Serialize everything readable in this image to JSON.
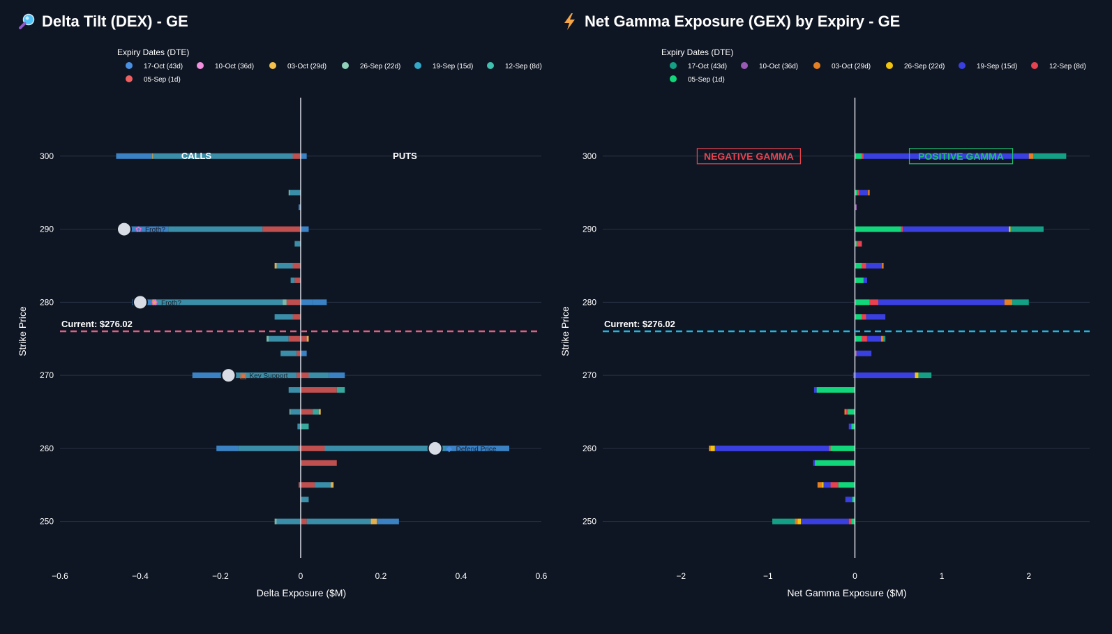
{
  "charts": [
    {
      "title": "Delta Tilt (DEX) - GE",
      "icon": "magnifier-icon",
      "type": "bar",
      "orientation": "horizontal",
      "stacked": true,
      "xlabel": "Delta Exposure ($M)",
      "ylabel": "Strike Price",
      "xlim": [
        -0.6,
        0.6
      ],
      "x_ticks": [
        "−0.6",
        "−0.4",
        "−0.2",
        "0",
        "0.2",
        "0.4",
        "0.6"
      ],
      "x_tick_values": [
        -0.6,
        -0.4,
        -0.2,
        0,
        0.2,
        0.4,
        0.6
      ],
      "ylim": [
        245,
        308
      ],
      "y_ticks": [
        "250",
        "260",
        "270",
        "280",
        "290",
        "300"
      ],
      "y_tick_values": [
        250,
        260,
        270,
        280,
        290,
        300
      ],
      "legend_title": "Expiry Dates (DTE)",
      "legend_position": "top",
      "series": [
        {
          "name": "17-Oct (43d)",
          "color": "#3b82c4",
          "marker_color": "#4a90e2"
        },
        {
          "name": "10-Oct (36d)",
          "color": "#d98ad6",
          "marker_color": "#f48fe0"
        },
        {
          "name": "03-Oct (29d)",
          "color": "#e0b050",
          "marker_color": "#f5c04a"
        },
        {
          "name": "26-Sep (22d)",
          "color": "#7fb8a8",
          "marker_color": "#8fd1b8"
        },
        {
          "name": "19-Sep (15d)",
          "color": "#3a8ea8",
          "marker_color": "#33a8c7"
        },
        {
          "name": "12-Sep (8d)",
          "color": "#38a89d",
          "marker_color": "#3fc1b0"
        },
        {
          "name": "05-Sep (1d)",
          "color": "#c05050",
          "marker_color": "#f06060"
        }
      ],
      "bars": [
        {
          "strike": 300,
          "segments": [
            [
              -0.46,
              -0.37,
              0
            ],
            [
              -0.37,
              -0.368,
              2
            ],
            [
              -0.368,
              -0.02,
              4
            ],
            [
              -0.02,
              0.0,
              6
            ],
            [
              0.0,
              0.015,
              0
            ]
          ]
        },
        {
          "strike": 295,
          "segments": [
            [
              -0.03,
              -0.027,
              3
            ],
            [
              -0.027,
              0.0,
              4
            ]
          ]
        },
        {
          "strike": 293,
          "segments": [
            [
              -0.005,
              0.0,
              0
            ]
          ]
        },
        {
          "strike": 290,
          "segments": [
            [
              -0.44,
              -0.33,
              0
            ],
            [
              -0.33,
              -0.095,
              4
            ],
            [
              -0.095,
              0.0,
              6
            ],
            [
              0.0,
              0.02,
              0
            ]
          ]
        },
        {
          "strike": 288,
          "segments": [
            [
              -0.015,
              0.0,
              4
            ]
          ]
        },
        {
          "strike": 285,
          "segments": [
            [
              -0.065,
              -0.06,
              2
            ],
            [
              -0.06,
              -0.02,
              4
            ],
            [
              -0.02,
              0.0,
              6
            ]
          ]
        },
        {
          "strike": 283,
          "segments": [
            [
              -0.025,
              -0.015,
              4
            ],
            [
              -0.015,
              0.0,
              6
            ]
          ]
        },
        {
          "strike": 280,
          "segments": [
            [
              -0.42,
              -0.37,
              0
            ],
            [
              -0.37,
              -0.36,
              2
            ],
            [
              -0.36,
              -0.045,
              4
            ],
            [
              -0.045,
              -0.035,
              3
            ],
            [
              -0.035,
              0.0,
              6
            ],
            [
              0.0,
              0.03,
              0
            ],
            [
              0.03,
              0.065,
              0
            ]
          ]
        },
        {
          "strike": 278,
          "segments": [
            [
              -0.065,
              -0.02,
              4
            ],
            [
              -0.02,
              0.0,
              6
            ]
          ]
        },
        {
          "strike": 275,
          "segments": [
            [
              -0.085,
              -0.08,
              3
            ],
            [
              -0.08,
              -0.03,
              4
            ],
            [
              -0.03,
              0.0,
              6
            ],
            [
              0.0,
              0.015,
              6
            ],
            [
              0.015,
              0.02,
              2
            ]
          ]
        },
        {
          "strike": 273,
          "segments": [
            [
              -0.05,
              -0.01,
              4
            ],
            [
              -0.01,
              0.0,
              6
            ],
            [
              0.0,
              0.015,
              0
            ]
          ]
        },
        {
          "strike": 270,
          "segments": [
            [
              -0.27,
              -0.2,
              0
            ],
            [
              -0.2,
              -0.01,
              4
            ],
            [
              -0.01,
              0.0,
              6
            ],
            [
              0.0,
              0.02,
              6
            ],
            [
              0.02,
              0.07,
              4
            ],
            [
              0.07,
              0.11,
              0
            ]
          ]
        },
        {
          "strike": 268,
          "segments": [
            [
              -0.03,
              0.0,
              4
            ],
            [
              0.0,
              0.09,
              6
            ],
            [
              0.09,
              0.11,
              5
            ]
          ]
        },
        {
          "strike": 265,
          "segments": [
            [
              -0.028,
              -0.025,
              3
            ],
            [
              -0.025,
              0.0,
              4
            ],
            [
              0.0,
              0.03,
              6
            ],
            [
              0.03,
              0.045,
              5
            ],
            [
              0.045,
              0.05,
              2
            ]
          ]
        },
        {
          "strike": 263,
          "segments": [
            [
              -0.008,
              0.0,
              4
            ],
            [
              0.0,
              0.02,
              5
            ]
          ]
        },
        {
          "strike": 260,
          "segments": [
            [
              -0.21,
              -0.155,
              0
            ],
            [
              -0.155,
              -0.005,
              4
            ],
            [
              -0.005,
              0.0,
              6
            ],
            [
              0.0,
              0.06,
              6
            ],
            [
              0.06,
              0.36,
              4
            ],
            [
              0.36,
              0.52,
              0
            ]
          ]
        },
        {
          "strike": 258,
          "segments": [
            [
              0.0,
              0.09,
              6
            ]
          ]
        },
        {
          "strike": 255,
          "segments": [
            [
              -0.005,
              0.0,
              6
            ],
            [
              0.0,
              0.035,
              6
            ],
            [
              0.035,
              0.075,
              4
            ],
            [
              0.075,
              0.082,
              2
            ]
          ]
        },
        {
          "strike": 253,
          "segments": [
            [
              0.0,
              0.02,
              4
            ]
          ]
        },
        {
          "strike": 250,
          "segments": [
            [
              -0.065,
              -0.06,
              3
            ],
            [
              -0.06,
              0.0,
              4
            ],
            [
              0.0,
              0.015,
              6
            ],
            [
              0.015,
              0.175,
              4
            ],
            [
              0.175,
              0.19,
              2
            ],
            [
              0.19,
              0.245,
              0
            ]
          ]
        }
      ],
      "current_price": 276.02,
      "current_label": "Current: $276.02",
      "current_line_color": "#e06080",
      "zone_labels": [
        {
          "text": "CALLS",
          "x": -0.26,
          "y": 300
        },
        {
          "text": "PUTS",
          "x": 0.26,
          "y": 300
        }
      ],
      "markers": [
        {
          "x": -0.44,
          "y": 290,
          "emoji": "✿",
          "emoji_color": "#f06fd0",
          "label": "Froth?"
        },
        {
          "x": -0.4,
          "y": 280,
          "emoji": "✿",
          "emoji_color": "#f06fd0",
          "label": "Froth?"
        },
        {
          "x": -0.18,
          "y": 270,
          "emoji": "▣",
          "emoji_color": "#e07040",
          "label": "Key Support"
        },
        {
          "x": 0.335,
          "y": 260,
          "emoji": "◆",
          "emoji_color": "#4a90e2",
          "label": "Defend Price"
        }
      ]
    },
    {
      "title": "Net Gamma Exposure (GEX) by Expiry - GE",
      "icon": "lightning-icon",
      "type": "bar",
      "orientation": "horizontal",
      "stacked": true,
      "xlabel": "Net Gamma Exposure ($M)",
      "ylabel": "Strike Price",
      "xlim": [
        -2.9,
        2.7
      ],
      "x_ticks": [
        "−2",
        "−1",
        "0",
        "1",
        "2"
      ],
      "x_tick_values": [
        -2,
        -1,
        0,
        1,
        2
      ],
      "ylim": [
        245,
        308
      ],
      "y_ticks": [
        "250",
        "260",
        "270",
        "280",
        "290",
        "300"
      ],
      "y_tick_values": [
        250,
        260,
        270,
        280,
        290,
        300
      ],
      "legend_title": "Expiry Dates (DTE)",
      "legend_position": "top",
      "series": [
        {
          "name": "17-Oct (43d)",
          "color": "#14a085",
          "marker_color": "#14a085"
        },
        {
          "name": "10-Oct (36d)",
          "color": "#9b59b6",
          "marker_color": "#9b59b6"
        },
        {
          "name": "03-Oct (29d)",
          "color": "#e67e22",
          "marker_color": "#e67e22"
        },
        {
          "name": "26-Sep (22d)",
          "color": "#f1c40f",
          "marker_color": "#f1c40f"
        },
        {
          "name": "19-Sep (15d)",
          "color": "#3a3fe0",
          "marker_color": "#3a3fe0"
        },
        {
          "name": "12-Sep (8d)",
          "color": "#e84150",
          "marker_color": "#e84150"
        },
        {
          "name": "05-Sep (1d)",
          "color": "#12d67a",
          "marker_color": "#12d67a"
        }
      ],
      "bars": [
        {
          "strike": 300,
          "segments": [
            [
              0.0,
              0.08,
              6
            ],
            [
              0.08,
              0.1,
              5
            ],
            [
              0.1,
              2.0,
              4
            ],
            [
              2.0,
              2.05,
              2
            ],
            [
              2.05,
              2.43,
              0
            ]
          ]
        },
        {
          "strike": 295,
          "segments": [
            [
              0.0,
              0.03,
              6
            ],
            [
              0.03,
              0.05,
              5
            ],
            [
              0.05,
              0.15,
              4
            ],
            [
              0.15,
              0.17,
              2
            ]
          ]
        },
        {
          "strike": 293,
          "segments": [
            [
              0.0,
              0.02,
              1
            ]
          ]
        },
        {
          "strike": 290,
          "segments": [
            [
              0.0,
              0.53,
              6
            ],
            [
              0.53,
              0.55,
              5
            ],
            [
              0.55,
              1.77,
              4
            ],
            [
              1.77,
              1.79,
              3
            ],
            [
              1.79,
              2.17,
              0
            ]
          ]
        },
        {
          "strike": 288,
          "segments": [
            [
              0.0,
              0.02,
              6
            ],
            [
              0.02,
              0.08,
              5
            ]
          ]
        },
        {
          "strike": 285,
          "segments": [
            [
              0.0,
              0.08,
              6
            ],
            [
              0.08,
              0.13,
              5
            ],
            [
              0.13,
              0.31,
              4
            ],
            [
              0.31,
              0.33,
              2
            ]
          ]
        },
        {
          "strike": 283,
          "segments": [
            [
              0.0,
              0.1,
              6
            ],
            [
              0.1,
              0.14,
              4
            ]
          ]
        },
        {
          "strike": 280,
          "segments": [
            [
              0.0,
              0.17,
              6
            ],
            [
              0.17,
              0.27,
              5
            ],
            [
              0.27,
              1.72,
              4
            ],
            [
              1.72,
              1.81,
              2
            ],
            [
              1.81,
              2.0,
              0
            ]
          ]
        },
        {
          "strike": 278,
          "segments": [
            [
              0.0,
              0.08,
              6
            ],
            [
              0.08,
              0.13,
              5
            ],
            [
              0.13,
              0.35,
              4
            ]
          ]
        },
        {
          "strike": 275,
          "segments": [
            [
              0.0,
              0.08,
              6
            ],
            [
              0.08,
              0.14,
              5
            ],
            [
              0.14,
              0.3,
              4
            ],
            [
              0.3,
              0.33,
              2
            ],
            [
              0.33,
              0.35,
              0
            ]
          ]
        },
        {
          "strike": 273,
          "segments": [
            [
              0.0,
              0.02,
              1
            ],
            [
              0.02,
              0.19,
              4
            ]
          ]
        },
        {
          "strike": 270,
          "segments": [
            [
              -0.02,
              0.0,
              4
            ],
            [
              0.0,
              0.69,
              4
            ],
            [
              0.69,
              0.73,
              3
            ],
            [
              0.73,
              0.88,
              0
            ]
          ]
        },
        {
          "strike": 268,
          "segments": [
            [
              -0.47,
              -0.44,
              4
            ],
            [
              -0.44,
              0.0,
              6
            ]
          ]
        },
        {
          "strike": 265,
          "segments": [
            [
              -0.12,
              -0.1,
              2
            ],
            [
              -0.1,
              -0.08,
              5
            ],
            [
              -0.08,
              0.0,
              6
            ]
          ]
        },
        {
          "strike": 263,
          "segments": [
            [
              -0.07,
              -0.04,
              4
            ],
            [
              -0.04,
              0.0,
              6
            ]
          ]
        },
        {
          "strike": 260,
          "segments": [
            [
              -1.68,
              -1.66,
              2
            ],
            [
              -1.66,
              -1.61,
              3
            ],
            [
              -1.61,
              -0.3,
              4
            ],
            [
              -0.3,
              -0.28,
              5
            ],
            [
              -0.28,
              0.0,
              6
            ]
          ]
        },
        {
          "strike": 258,
          "segments": [
            [
              -0.48,
              -0.46,
              4
            ],
            [
              -0.46,
              0.0,
              6
            ]
          ]
        },
        {
          "strike": 255,
          "segments": [
            [
              -0.43,
              -0.38,
              2
            ],
            [
              -0.38,
              -0.36,
              3
            ],
            [
              -0.36,
              -0.28,
              4
            ],
            [
              -0.28,
              -0.19,
              5
            ],
            [
              -0.19,
              0.0,
              6
            ]
          ]
        },
        {
          "strike": 253,
          "segments": [
            [
              -0.11,
              -0.03,
              4
            ],
            [
              -0.03,
              0.0,
              6
            ]
          ]
        },
        {
          "strike": 250,
          "segments": [
            [
              -0.95,
              -0.69,
              0
            ],
            [
              -0.69,
              -0.66,
              2
            ],
            [
              -0.66,
              -0.62,
              3
            ],
            [
              -0.62,
              -0.07,
              4
            ],
            [
              -0.07,
              -0.04,
              5
            ],
            [
              -0.04,
              0.0,
              6
            ]
          ]
        }
      ],
      "current_price": 276.02,
      "current_label": "Current: $276.02",
      "current_line_color": "#20b8e0",
      "zone_boxes": [
        {
          "text": "NEGATIVE GAMMA",
          "x": -1.22,
          "y": 300,
          "color": "#e8434f"
        },
        {
          "text": "POSITIVE GAMMA",
          "x": 1.22,
          "y": 300,
          "color": "#1ec26a"
        }
      ]
    }
  ]
}
